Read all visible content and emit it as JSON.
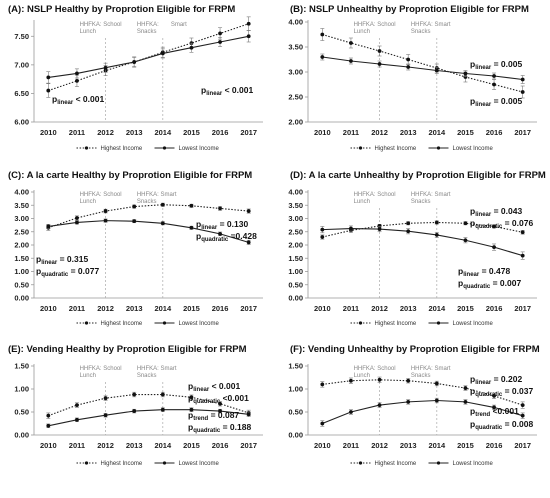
{
  "chart_data": [
    {
      "type": "line",
      "title": "(A): NSLP Healthy by Proprotion Eligible for FRPM",
      "categories": [
        "2010",
        "2011",
        "2012",
        "2013",
        "2014",
        "2015",
        "2016",
        "2017"
      ],
      "ylim": [
        6.0,
        7.75
      ],
      "yticks": [
        "6.00",
        "6.50",
        "7.00",
        "7.50"
      ],
      "annotations": [
        {
          "year": "2012",
          "lines": [
            "HHFKA: School",
            "Lunch"
          ]
        },
        {
          "year": "2014",
          "lines": [
            "HHFKA:",
            "Snacks"
          ],
          "extra": "Smart"
        }
      ],
      "series": [
        {
          "name": "Highest Income",
          "style": "dotted",
          "values": [
            6.55,
            6.72,
            6.9,
            7.05,
            7.22,
            7.38,
            7.55,
            7.72
          ],
          "err": [
            0.12,
            0.1,
            0.09,
            0.09,
            0.09,
            0.09,
            0.1,
            0.12
          ]
        },
        {
          "name": "Lowest Income",
          "style": "solid",
          "values": [
            6.78,
            6.85,
            6.95,
            7.05,
            7.2,
            7.3,
            7.4,
            7.5
          ],
          "err": [
            0.1,
            0.08,
            0.08,
            0.08,
            0.08,
            0.08,
            0.08,
            0.1
          ]
        }
      ],
      "stats": [
        {
          "parts": [
            [
              "p",
              "linear"
            ]
          ],
          "text": " < 0.001",
          "anchor": "upper"
        },
        {
          "parts": [
            [
              "p",
              "linear"
            ]
          ],
          "text": " < 0.001",
          "anchor": "lower"
        }
      ]
    },
    {
      "type": "line",
      "title": "(B): NSLP Unhealthy by Proprotion Eligible for FRPM",
      "categories": [
        "2010",
        "2011",
        "2012",
        "2013",
        "2014",
        "2015",
        "2016",
        "2017"
      ],
      "ylim": [
        2.0,
        4.0
      ],
      "yticks": [
        "2.00",
        "2.50",
        "3.00",
        "3.50",
        "4.00"
      ],
      "annotations": [
        {
          "year": "2012",
          "lines": [
            "HHFKA: School",
            "Lunch"
          ]
        },
        {
          "year": "2014",
          "lines": [
            "HHFKA:  Smart",
            "Snacks"
          ]
        }
      ],
      "series": [
        {
          "name": "Highest Income",
          "style": "dotted",
          "values": [
            3.75,
            3.58,
            3.42,
            3.25,
            3.08,
            2.9,
            2.75,
            2.6
          ],
          "err": [
            0.12,
            0.1,
            0.1,
            0.1,
            0.08,
            0.1,
            0.1,
            0.12
          ]
        },
        {
          "name": "Lowest Income",
          "style": "solid",
          "values": [
            3.3,
            3.22,
            3.16,
            3.1,
            3.03,
            2.97,
            2.92,
            2.85
          ],
          "err": [
            0.06,
            0.06,
            0.06,
            0.06,
            0.06,
            0.06,
            0.06,
            0.08
          ]
        }
      ],
      "stats": [
        {
          "parts": [
            [
              "p",
              "linear"
            ]
          ],
          "text": " = 0.005"
        },
        {
          "parts": [
            [
              "p",
              "linear"
            ]
          ],
          "text": " = 0.005"
        }
      ]
    },
    {
      "type": "line",
      "title": "(C): A la carte Healthy by Proprotion Eligible for FRPM",
      "categories": [
        "2010",
        "2011",
        "2012",
        "2013",
        "2014",
        "2015",
        "2016",
        "2017"
      ],
      "ylim": [
        0.0,
        4.0
      ],
      "yticks": [
        "0.00",
        "0.50",
        "1.00",
        "1.50",
        "2.00",
        "2.50",
        "3.00",
        "3.50",
        "4.00"
      ],
      "annotations": [
        {
          "year": "2012",
          "lines": [
            "HHFKA: School",
            "Lunch"
          ]
        },
        {
          "year": "2014",
          "lines": [
            "HHFKA:  Smart",
            "Snacks"
          ]
        }
      ],
      "series": [
        {
          "name": "Highest Income",
          "style": "dotted",
          "values": [
            2.65,
            3.02,
            3.28,
            3.45,
            3.52,
            3.48,
            3.38,
            3.28
          ],
          "err": [
            0.1,
            0.08,
            0.07,
            0.06,
            0.06,
            0.06,
            0.07,
            0.08
          ]
        },
        {
          "name": "Lowest Income",
          "style": "solid",
          "values": [
            2.7,
            2.85,
            2.92,
            2.9,
            2.82,
            2.65,
            2.42,
            2.1
          ],
          "err": [
            0.08,
            0.06,
            0.06,
            0.06,
            0.06,
            0.06,
            0.07,
            0.08
          ]
        }
      ],
      "stats": [
        {
          "parts": [
            [
              "p",
              "linear"
            ]
          ],
          "text": " = 0.130"
        },
        {
          "parts": [
            [
              "p",
              "quadratic"
            ]
          ],
          "text": " =0.428"
        },
        {
          "parts": [
            [
              "p",
              "linear"
            ]
          ],
          "text": " = 0.315"
        },
        {
          "parts": [
            [
              "p",
              "quadratic"
            ]
          ],
          "text": " = 0.077"
        }
      ]
    },
    {
      "type": "line",
      "title": "(D): A la carte Unhealthy by Proprotion Eligible for FRPM",
      "categories": [
        "2010",
        "2011",
        "2012",
        "2013",
        "2014",
        "2015",
        "2016",
        "2017"
      ],
      "ylim": [
        0.0,
        4.0
      ],
      "yticks": [
        "0.00",
        "0.50",
        "1.00",
        "1.50",
        "2.00",
        "2.50",
        "3.00",
        "3.50",
        "4.00"
      ],
      "annotations": [
        {
          "year": "2012",
          "lines": [
            "HHFKA: School",
            "Lunch"
          ]
        },
        {
          "year": "2014",
          "lines": [
            "HHFKA:  Smart",
            "Snacks"
          ]
        }
      ],
      "series": [
        {
          "name": "Highest Income",
          "style": "dotted",
          "values": [
            2.3,
            2.55,
            2.72,
            2.82,
            2.85,
            2.82,
            2.7,
            2.48
          ],
          "err": [
            0.08,
            0.07,
            0.06,
            0.06,
            0.06,
            0.06,
            0.06,
            0.07
          ]
        },
        {
          "name": "Lowest Income",
          "style": "solid",
          "values": [
            2.58,
            2.62,
            2.6,
            2.52,
            2.38,
            2.18,
            1.92,
            1.6
          ],
          "err": [
            0.12,
            0.1,
            0.1,
            0.1,
            0.1,
            0.1,
            0.12,
            0.14
          ]
        }
      ],
      "stats": [
        {
          "parts": [
            [
              "p",
              "linear"
            ]
          ],
          "text": " = 0.043"
        },
        {
          "parts": [
            [
              "p",
              "quadratic"
            ]
          ],
          "text": " = 0.076"
        },
        {
          "parts": [
            [
              "p",
              "linear"
            ]
          ],
          "text": " = 0.478"
        },
        {
          "parts": [
            [
              "p",
              "quadratic"
            ]
          ],
          "text": " = 0.007"
        }
      ]
    },
    {
      "type": "line",
      "title": "(E): Vending Healthy by Proprotion Eligible for FRPM",
      "categories": [
        "2010",
        "2011",
        "2012",
        "2013",
        "2014",
        "2015",
        "2016",
        "2017"
      ],
      "ylim": [
        0.0,
        1.5
      ],
      "yticks": [
        "0.00",
        "0.50",
        "1.00",
        "1.50"
      ],
      "annotations": [
        {
          "year": "2012",
          "lines": [
            "HHFKA: School",
            "Lunch"
          ]
        },
        {
          "year": "2014",
          "lines": [
            "HHFKA:  Smart",
            "Snacks"
          ]
        }
      ],
      "series": [
        {
          "name": "Highest Income",
          "style": "dotted",
          "values": [
            0.42,
            0.65,
            0.8,
            0.88,
            0.88,
            0.82,
            0.68,
            0.48
          ],
          "err": [
            0.06,
            0.05,
            0.05,
            0.05,
            0.05,
            0.05,
            0.05,
            0.06
          ]
        },
        {
          "name": "Lowest Income",
          "style": "solid",
          "values": [
            0.2,
            0.33,
            0.43,
            0.52,
            0.55,
            0.55,
            0.52,
            0.45
          ],
          "err": [
            0.04,
            0.04,
            0.04,
            0.04,
            0.04,
            0.04,
            0.04,
            0.05
          ]
        }
      ],
      "stats": [
        {
          "parts": [
            [
              "p",
              "linear"
            ]
          ],
          "text": " < 0.001"
        },
        {
          "parts": [
            [
              "p",
              "quadratic"
            ]
          ],
          "text": " <0.001"
        },
        {
          "parts": [
            [
              "p",
              "trend"
            ]
          ],
          "text": " = 0.087"
        },
        {
          "parts": [
            [
              "p",
              "quadratic"
            ]
          ],
          "text": " = 0.188"
        }
      ]
    },
    {
      "type": "line",
      "title": "(F): Vending Unhealthy by Proprotion Eligible for FRPM",
      "categories": [
        "2010",
        "2011",
        "2012",
        "2013",
        "2014",
        "2015",
        "2016",
        "2017"
      ],
      "ylim": [
        0.0,
        1.5
      ],
      "yticks": [
        "0.00",
        "0.50",
        "1.00",
        "1.50"
      ],
      "annotations": [
        {
          "year": "2012",
          "lines": [
            "HHFKA: School",
            "Lunch"
          ]
        },
        {
          "year": "2014",
          "lines": [
            "HHFKA:  Smart",
            "Snacks"
          ]
        }
      ],
      "series": [
        {
          "name": "Highest Income",
          "style": "dotted",
          "values": [
            1.1,
            1.18,
            1.2,
            1.18,
            1.12,
            1.02,
            0.85,
            0.65
          ],
          "err": [
            0.06,
            0.06,
            0.06,
            0.05,
            0.05,
            0.05,
            0.06,
            0.07
          ]
        },
        {
          "name": "Lowest Income",
          "style": "solid",
          "values": [
            0.25,
            0.5,
            0.65,
            0.72,
            0.75,
            0.72,
            0.6,
            0.42
          ],
          "err": [
            0.06,
            0.05,
            0.05,
            0.05,
            0.05,
            0.05,
            0.05,
            0.06
          ]
        }
      ],
      "stats": [
        {
          "parts": [
            [
              "p",
              "linear"
            ]
          ],
          "text": " = 0.202"
        },
        {
          "parts": [
            [
              "p",
              "quadratic"
            ]
          ],
          "text": " = 0.037"
        },
        {
          "parts": [
            [
              "p",
              "trend"
            ]
          ],
          "text": " <0.001"
        },
        {
          "parts": [
            [
              "p",
              "quadratic"
            ]
          ],
          "text": " = 0.008"
        }
      ]
    }
  ]
}
